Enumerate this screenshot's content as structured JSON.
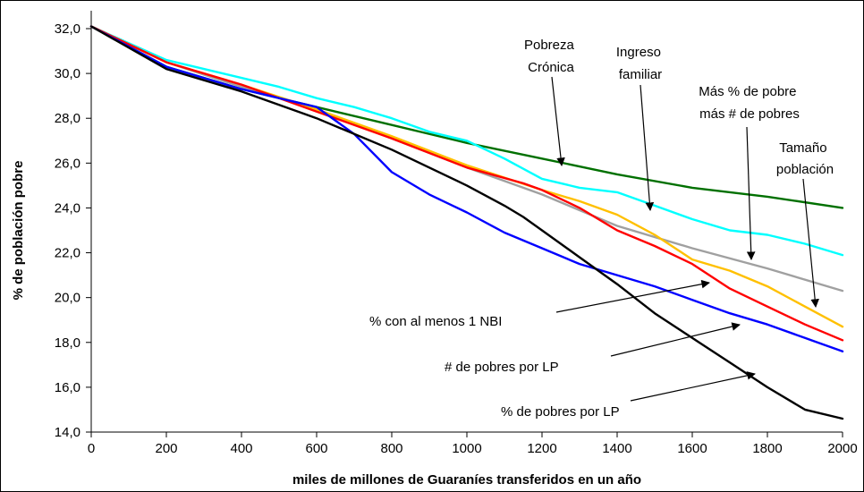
{
  "chart_data": {
    "type": "line",
    "title": "",
    "xlabel": "miles de millones de Guaraníes transferidos en un año",
    "ylabel": "% de población pobre",
    "xlim": [
      0,
      2000
    ],
    "ylim": [
      14,
      32
    ],
    "xticks": [
      "0",
      "200",
      "400",
      "600",
      "800",
      "1000",
      "1200",
      "1400",
      "1600",
      "1800",
      "2000"
    ],
    "yticks": [
      "14,0",
      "16,0",
      "18,0",
      "20,0",
      "22,0",
      "24,0",
      "26,0",
      "28,0",
      "30,0",
      "32,0"
    ],
    "grid": false,
    "legend": "none",
    "series": [
      {
        "name": "Pobreza Crónica",
        "color": "#007000",
        "x": [
          0,
          200,
          400,
          600,
          800,
          1000,
          1200,
          1400,
          1600,
          1800,
          2000
        ],
        "y": [
          32.1,
          30.3,
          29.3,
          28.5,
          27.7,
          26.9,
          26.2,
          25.5,
          24.9,
          24.5,
          24.0
        ]
      },
      {
        "name": "Ingreso familiar",
        "color": "#00ffff",
        "x": [
          0,
          200,
          400,
          500,
          600,
          700,
          800,
          900,
          1000,
          1100,
          1200,
          1300,
          1400,
          1500,
          1600,
          1700,
          1800,
          1900,
          2000
        ],
        "y": [
          32.1,
          30.6,
          29.8,
          29.4,
          28.9,
          28.5,
          28.0,
          27.4,
          27.0,
          26.2,
          25.3,
          24.9,
          24.7,
          24.1,
          23.5,
          23.0,
          22.8,
          22.4,
          21.9
        ]
      },
      {
        "name": "Más % de pobre más # de pobres",
        "color": "#a0a0a0",
        "x": [
          0,
          200,
          400,
          600,
          800,
          1000,
          1200,
          1400,
          1600,
          1800,
          2000
        ],
        "y": [
          32.1,
          30.5,
          29.4,
          28.4,
          27.1,
          25.8,
          24.6,
          23.2,
          22.2,
          21.3,
          20.3
        ]
      },
      {
        "name": "Tamaño población",
        "color": "#ffc000",
        "x": [
          0,
          200,
          400,
          600,
          800,
          1000,
          1200,
          1300,
          1400,
          1500,
          1600,
          1700,
          1800,
          1900,
          2000
        ],
        "y": [
          32.1,
          30.5,
          29.5,
          28.4,
          27.2,
          25.9,
          24.8,
          24.3,
          23.7,
          22.8,
          21.7,
          21.2,
          20.5,
          19.6,
          18.7
        ]
      },
      {
        "name": "% con al menos 1 NBI",
        "color": "#ff0000",
        "x": [
          0,
          200,
          400,
          600,
          800,
          1000,
          1150,
          1200,
          1300,
          1400,
          1500,
          1600,
          1700,
          1800,
          1900,
          2000
        ],
        "y": [
          32.1,
          30.5,
          29.5,
          28.3,
          27.1,
          25.8,
          25.1,
          24.8,
          24.0,
          23.0,
          22.3,
          21.5,
          20.4,
          19.6,
          18.8,
          18.1
        ]
      },
      {
        "name": "# de pobres por LP",
        "color": "#0000ff",
        "x": [
          0,
          200,
          400,
          500,
          600,
          700,
          800,
          900,
          1000,
          1100,
          1200,
          1300,
          1400,
          1500,
          1600,
          1700,
          1800,
          1900,
          2000
        ],
        "y": [
          32.1,
          30.3,
          29.3,
          28.9,
          28.5,
          27.3,
          25.6,
          24.6,
          23.8,
          22.9,
          22.2,
          21.5,
          21.0,
          20.5,
          19.9,
          19.3,
          18.8,
          18.2,
          17.6
        ]
      },
      {
        "name": "% de pobres por LP",
        "color": "#000000",
        "x": [
          0,
          200,
          400,
          600,
          800,
          1000,
          1100,
          1150,
          1200,
          1300,
          1400,
          1500,
          1600,
          1700,
          1800,
          1900,
          2000
        ],
        "y": [
          32.1,
          30.2,
          29.2,
          28.0,
          26.6,
          25.0,
          24.1,
          23.6,
          23.0,
          21.8,
          20.6,
          19.3,
          18.2,
          17.1,
          16.0,
          15.0,
          14.6
        ]
      }
    ],
    "annotations": [
      {
        "lines": [
          "Pobreza",
          "Crónica"
        ]
      },
      {
        "lines": [
          "Ingreso",
          "familiar"
        ]
      },
      {
        "lines": [
          "Más % de pobre",
          "más # de pobres"
        ]
      },
      {
        "lines": [
          "Tamaño",
          "población"
        ]
      },
      {
        "lines": [
          "% con al menos 1 NBI"
        ]
      },
      {
        "lines": [
          "# de pobres por LP"
        ]
      },
      {
        "lines": [
          "% de pobres por LP"
        ]
      }
    ]
  }
}
